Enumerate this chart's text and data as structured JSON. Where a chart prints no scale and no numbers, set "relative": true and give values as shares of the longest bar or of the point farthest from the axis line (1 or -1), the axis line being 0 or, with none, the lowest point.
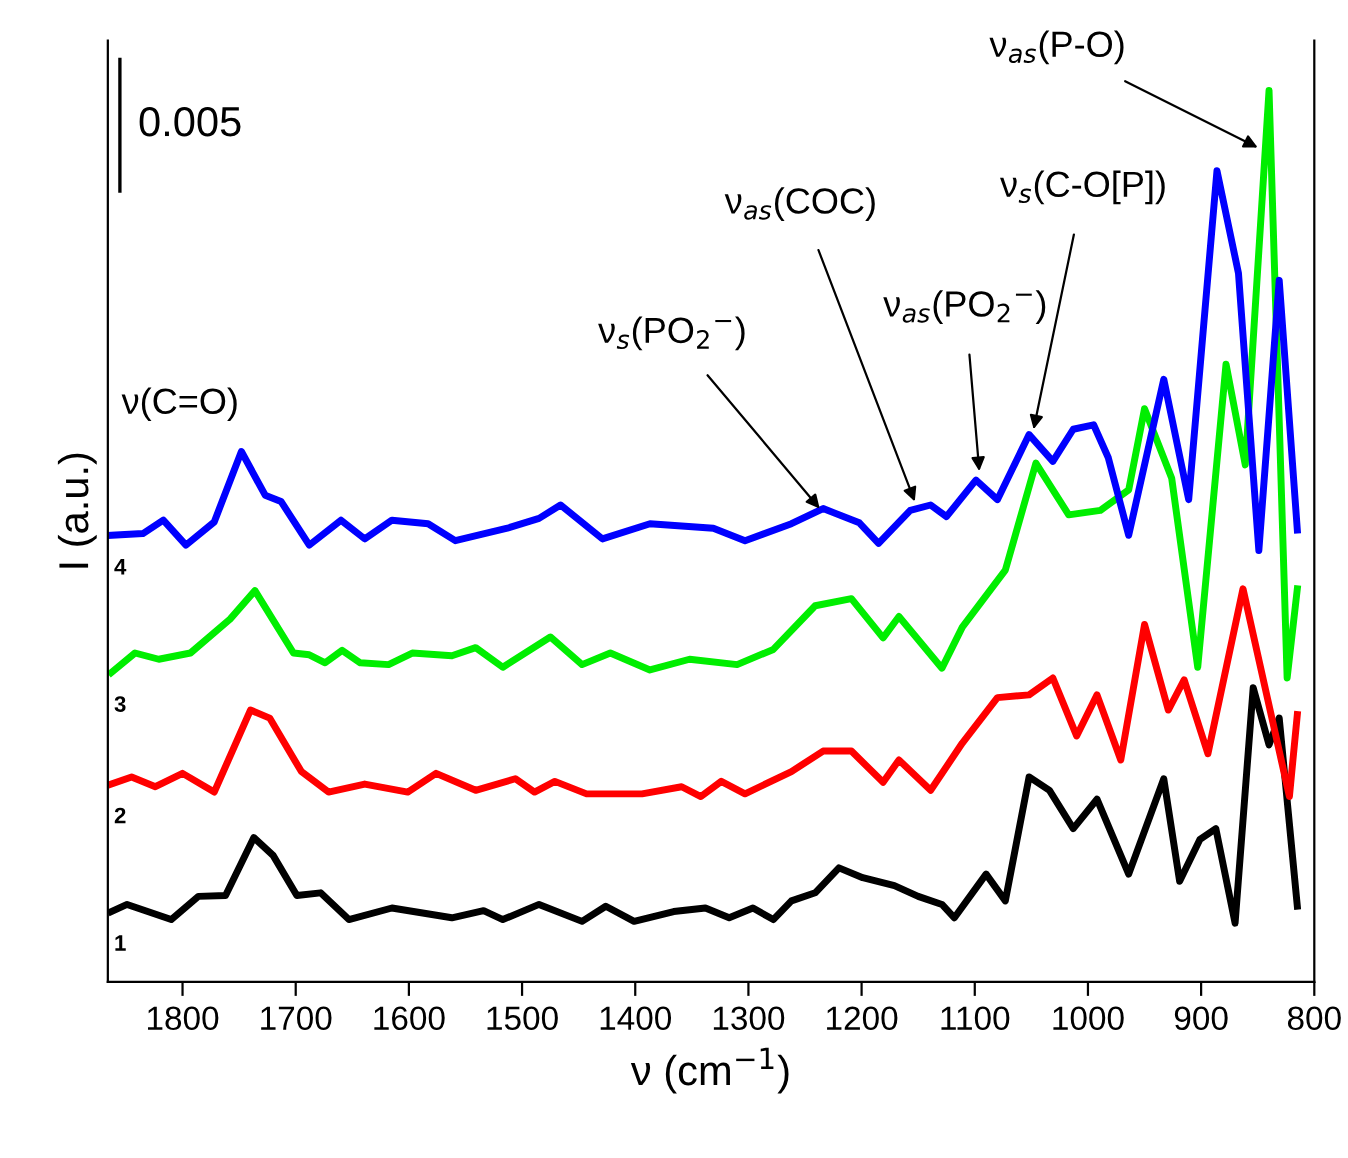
{
  "chart_data": {
    "type": "line",
    "relative": true,
    "xlabel": "ν (cm$^{−1}$)",
    "ylabel": "I (a.u.)",
    "xlim": [
      1866,
      800
    ],
    "xticks": [
      1800,
      1700,
      1600,
      1500,
      1400,
      1300,
      1200,
      1100,
      1000,
      900,
      800
    ],
    "grid": false,
    "legend": false,
    "marker": "none",
    "line_style": "solid",
    "series": [
      {
        "name": "1",
        "color": "#000000",
        "x": [
          1863,
          1849,
          1810,
          1786,
          1762,
          1737,
          1720,
          1699,
          1678,
          1653,
          1615,
          1562,
          1534,
          1517,
          1485,
          1447,
          1426,
          1401,
          1366,
          1338,
          1317,
          1296,
          1278,
          1262,
          1241,
          1220,
          1199,
          1171,
          1150,
          1129,
          1118,
          1090,
          1073,
          1052,
          1034,
          1013,
          992,
          964,
          933,
          919,
          901,
          887,
          870,
          854,
          840,
          831,
          815
        ],
        "values": [
          0.079,
          0.087,
          0.07,
          0.096,
          0.097,
          0.162,
          0.142,
          0.097,
          0.1,
          0.07,
          0.083,
          0.072,
          0.08,
          0.07,
          0.087,
          0.068,
          0.085,
          0.068,
          0.079,
          0.083,
          0.072,
          0.083,
          0.07,
          0.091,
          0.1,
          0.128,
          0.117,
          0.108,
          0.096,
          0.087,
          0.072,
          0.121,
          0.091,
          0.23,
          0.215,
          0.172,
          0.205,
          0.121,
          0.228,
          0.113,
          0.16,
          0.172,
          0.066,
          0.33,
          0.266,
          0.296,
          0.085
        ]
      },
      {
        "name": "2",
        "color": "#ff0000",
        "x": [
          1863,
          1845,
          1824,
          1800,
          1772,
          1740,
          1723,
          1695,
          1671,
          1639,
          1601,
          1576,
          1541,
          1506,
          1489,
          1471,
          1443,
          1394,
          1359,
          1342,
          1324,
          1303,
          1262,
          1234,
          1209,
          1181,
          1167,
          1139,
          1111,
          1080,
          1052,
          1031,
          1010,
          992,
          971,
          950,
          929,
          915,
          894,
          863,
          822,
          815
        ],
        "values": [
          0.222,
          0.23,
          0.219,
          0.234,
          0.213,
          0.305,
          0.296,
          0.236,
          0.213,
          0.222,
          0.213,
          0.234,
          0.215,
          0.228,
          0.213,
          0.225,
          0.211,
          0.211,
          0.219,
          0.208,
          0.225,
          0.211,
          0.236,
          0.259,
          0.259,
          0.224,
          0.249,
          0.215,
          0.268,
          0.319,
          0.322,
          0.341,
          0.276,
          0.322,
          0.249,
          0.401,
          0.305,
          0.339,
          0.256,
          0.441,
          0.208,
          0.3
        ]
      },
      {
        "name": "3",
        "color": "#00ee00",
        "x": [
          1863,
          1842,
          1821,
          1793,
          1758,
          1736,
          1702,
          1688,
          1674,
          1659,
          1643,
          1618,
          1597,
          1562,
          1541,
          1517,
          1475,
          1447,
          1422,
          1387,
          1352,
          1310,
          1278,
          1241,
          1209,
          1181,
          1167,
          1129,
          1111,
          1073,
          1046,
          1017,
          989,
          964,
          950,
          926,
          903,
          878,
          861,
          840,
          824,
          815
        ],
        "values": [
          0.347,
          0.369,
          0.362,
          0.369,
          0.407,
          0.439,
          0.369,
          0.367,
          0.358,
          0.372,
          0.358,
          0.356,
          0.369,
          0.366,
          0.375,
          0.353,
          0.387,
          0.356,
          0.369,
          0.35,
          0.362,
          0.356,
          0.373,
          0.422,
          0.43,
          0.386,
          0.41,
          0.352,
          0.398,
          0.462,
          0.582,
          0.524,
          0.529,
          0.552,
          0.643,
          0.565,
          0.353,
          0.693,
          0.58,
          1,
          0.341,
          0.441
        ]
      },
      {
        "name": "4",
        "color": "#0000ff",
        "x": [
          1863,
          1835,
          1817,
          1797,
          1772,
          1748,
          1727,
          1713,
          1688,
          1660,
          1639,
          1615,
          1583,
          1559,
          1513,
          1485,
          1466,
          1429,
          1387,
          1331,
          1303,
          1262,
          1234,
          1202,
          1185,
          1157,
          1139,
          1125,
          1099,
          1080,
          1052,
          1031,
          1013,
          995,
          982,
          964,
          933,
          911,
          886,
          867,
          849,
          831,
          815
        ],
        "values": [
          0.501,
          0.503,
          0.518,
          0.49,
          0.516,
          0.595,
          0.546,
          0.539,
          0.49,
          0.518,
          0.497,
          0.518,
          0.514,
          0.495,
          0.509,
          0.52,
          0.535,
          0.497,
          0.514,
          0.509,
          0.495,
          0.514,
          0.531,
          0.515,
          0.492,
          0.529,
          0.535,
          0.522,
          0.563,
          0.541,
          0.614,
          0.584,
          0.62,
          0.625,
          0.588,
          0.501,
          0.676,
          0.541,
          0.91,
          0.795,
          0.484,
          0.787,
          0.507
        ]
      }
    ],
    "annotations": [
      "0.005",
      {
        "text": "ν(C=O)",
        "x": 1748,
        "y": 0.595
      },
      {
        "text": "ν$_{s}$(PO$_{2}$$^{−}$)",
        "x": 1237,
        "y": 0.531
      },
      {
        "text": "ν$_{as}$(COC)",
        "x": 1153,
        "y": 0.539
      },
      {
        "text": "ν$_{as}$(PO$_{2}$$^{−}$)",
        "x": 1096,
        "y": 0.573
      },
      {
        "text": "ν$_{s}$(C-O[P])",
        "x": 1048,
        "y": 0.62
      },
      {
        "text": "ν$_{as}$(P-O)",
        "x": 850,
        "y": 0.936
      }
    ]
  }
}
